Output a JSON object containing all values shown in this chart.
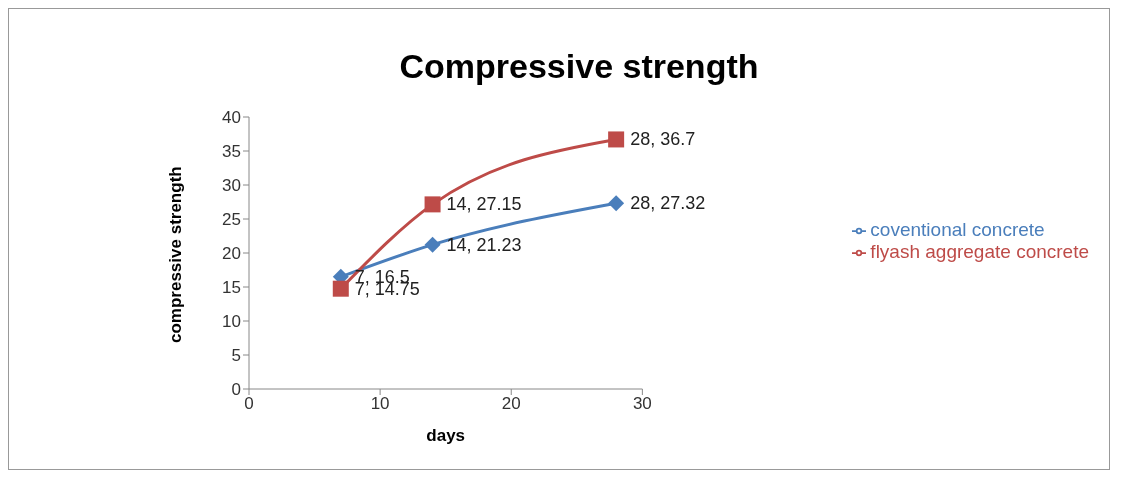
{
  "chart_data": {
    "type": "line",
    "title": "Compressive strength",
    "xlabel": "days",
    "ylabel": "compressive strength",
    "x": [
      7,
      14,
      28
    ],
    "series": [
      {
        "name": "coventional concrete",
        "color": "#4a7ebb",
        "marker": "diamond",
        "values": [
          16.5,
          21.23,
          27.32
        ],
        "value_labels": [
          "7, 16.5",
          "14, 21.23",
          "28, 27.32"
        ]
      },
      {
        "name": "flyash aggregate concrete",
        "color": "#be4b48",
        "marker": "square",
        "values": [
          14.75,
          27.15,
          36.7
        ],
        "value_labels": [
          "7, 14.75",
          "14, 27.15",
          "28, 36.7"
        ]
      }
    ],
    "xlim": [
      0,
      30
    ],
    "xticks": [
      0,
      10,
      20,
      30
    ],
    "ylim": [
      0,
      40
    ],
    "yticks": [
      0,
      5,
      10,
      15,
      20,
      25,
      30,
      35,
      40
    ],
    "legend": "right"
  }
}
